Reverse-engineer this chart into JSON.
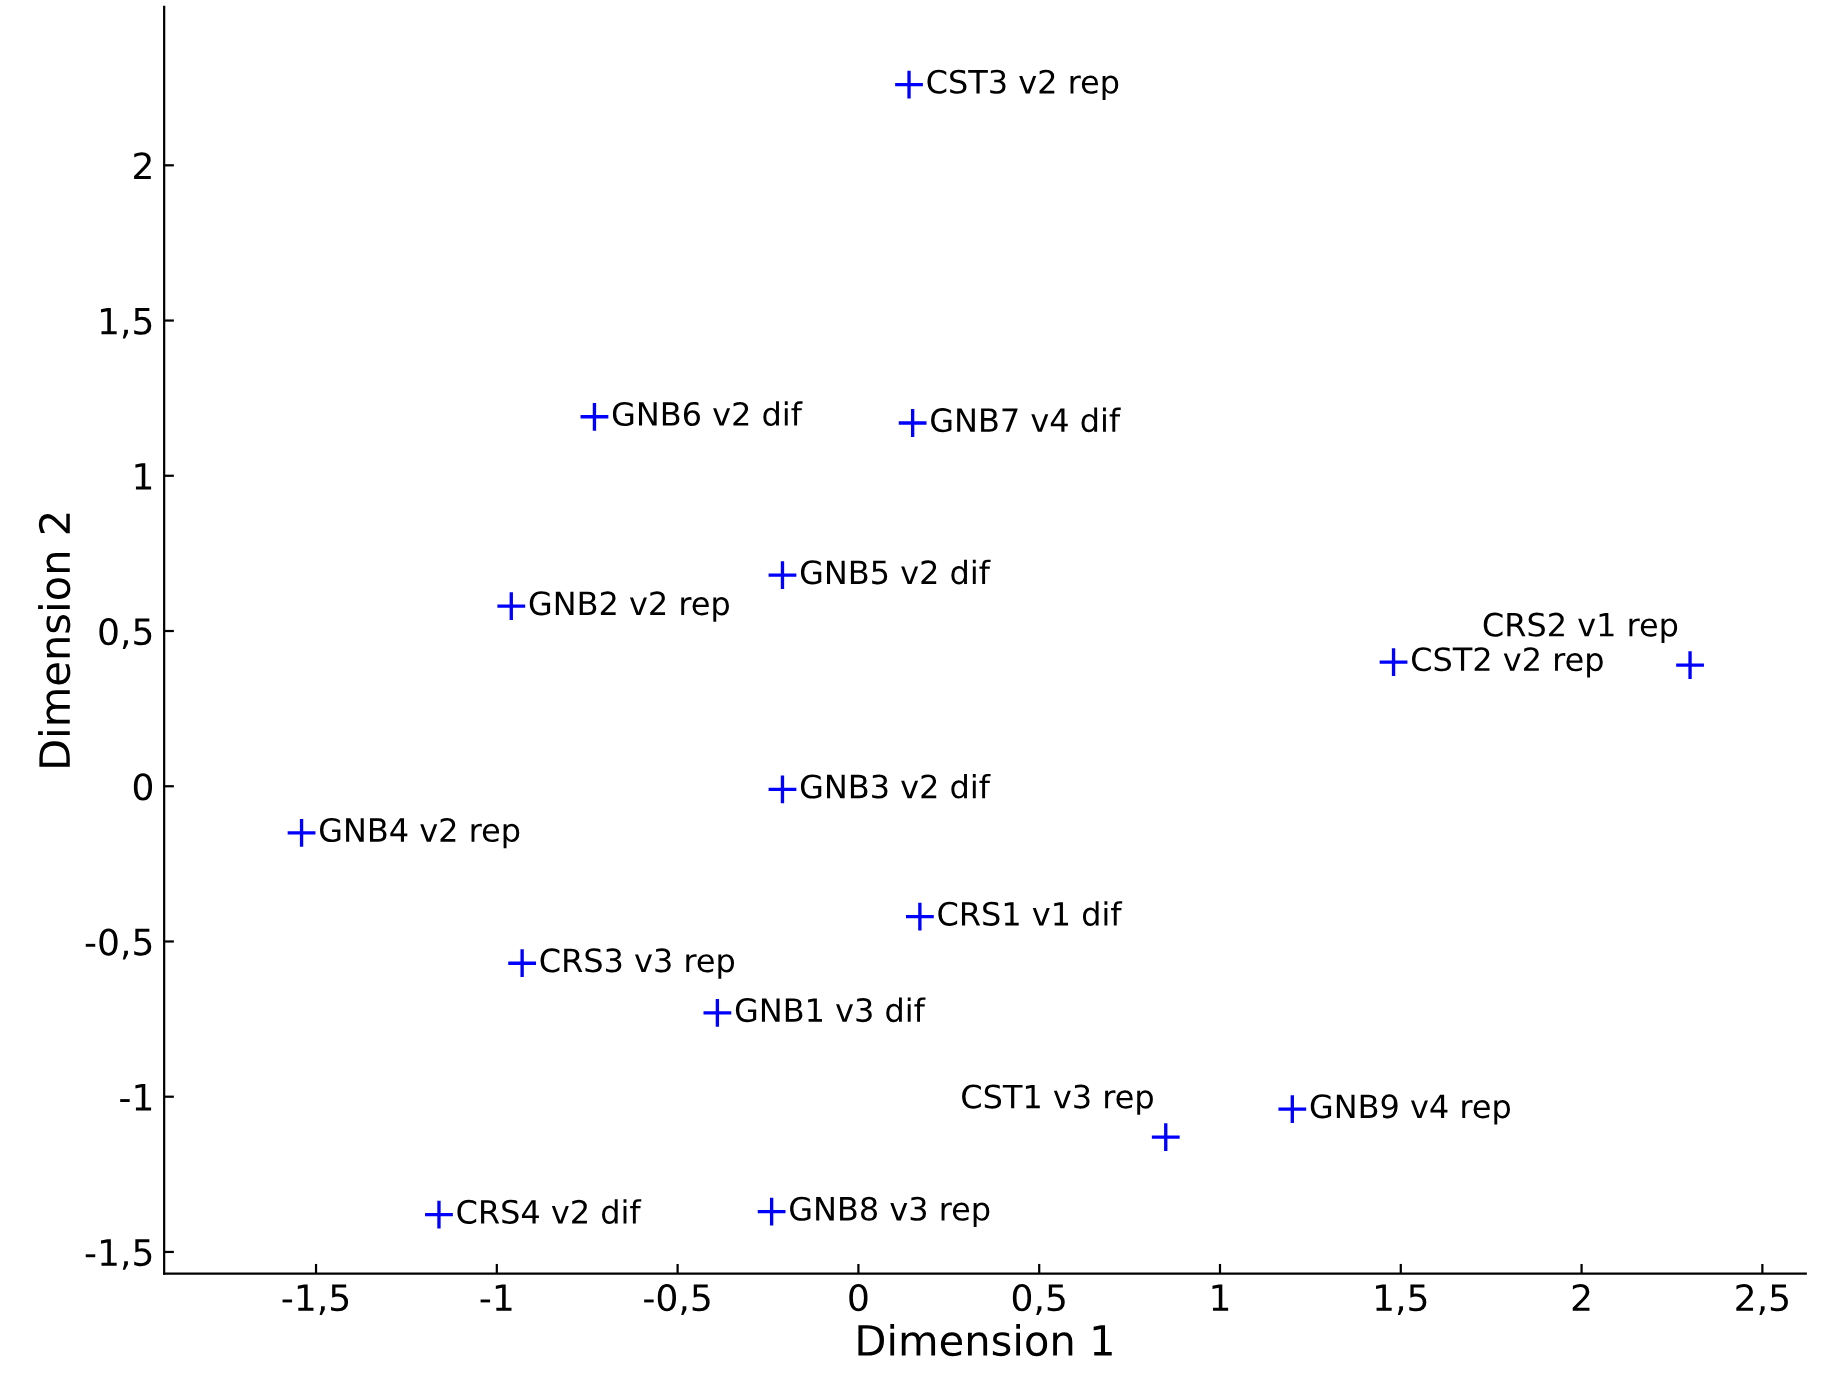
{
  "chart_data": {
    "type": "scatter",
    "xlabel": "Dimension 1",
    "ylabel": "Dimension 2",
    "marker": "cross",
    "grid": false,
    "xlim": [
      -1.92,
      2.62
    ],
    "ylim": [
      -1.57,
      2.51
    ],
    "xticks": [
      {
        "value": -1.5,
        "label": "-1,5"
      },
      {
        "value": -1,
        "label": "-1"
      },
      {
        "value": -0.5,
        "label": "-0,5"
      },
      {
        "value": 0,
        "label": "0"
      },
      {
        "value": 0.5,
        "label": "0,5"
      },
      {
        "value": 1,
        "label": "1"
      },
      {
        "value": 1.5,
        "label": "1,5"
      },
      {
        "value": 2,
        "label": "2"
      },
      {
        "value": 2.5,
        "label": "2,5"
      }
    ],
    "yticks": [
      {
        "value": -1.5,
        "label": "-1,5"
      },
      {
        "value": -1,
        "label": "-1"
      },
      {
        "value": -0.5,
        "label": "-0,5"
      },
      {
        "value": 0,
        "label": "0"
      },
      {
        "value": 0.5,
        "label": "0,5"
      },
      {
        "value": 1,
        "label": "1"
      },
      {
        "value": 1.5,
        "label": "1,5"
      },
      {
        "value": 2,
        "label": "2"
      }
    ],
    "series": [
      {
        "color": "#0000ff",
        "x": [
          0.14,
          -0.73,
          0.15,
          -0.21,
          -0.96,
          1.48,
          2.3,
          -0.21,
          -1.54,
          0.17,
          -0.93,
          -0.39,
          0.85,
          1.2,
          -1.16,
          -0.24
        ],
        "values": [
          2.26,
          1.19,
          1.17,
          0.68,
          0.58,
          0.4,
          0.39,
          -0.01,
          -0.15,
          -0.42,
          -0.57,
          -0.73,
          -1.13,
          -1.04,
          -1.38,
          -1.37
        ]
      }
    ],
    "annotations": [
      {
        "text": "CST3 v2 rep",
        "x": 0.14,
        "y": 2.26
      },
      {
        "text": "GNB6 v2 dif",
        "x": -0.73,
        "y": 1.19
      },
      {
        "text": "GNB7 v4 dif",
        "x": 0.15,
        "y": 1.17
      },
      {
        "text": "GNB5 v2 dif",
        "x": -0.21,
        "y": 0.68
      },
      {
        "text": "GNB2 v2 rep",
        "x": -0.96,
        "y": 0.58
      },
      {
        "text": "CST2 v2 rep",
        "x": 1.48,
        "y": 0.4
      },
      {
        "text": "CRS2 v1 rep",
        "x": 2.3,
        "y": 0.39
      },
      {
        "text": "GNB3 v2 dif",
        "x": -0.21,
        "y": -0.01
      },
      {
        "text": "GNB4 v2 rep",
        "x": -1.54,
        "y": -0.15
      },
      {
        "text": "CRS1 v1 dif",
        "x": 0.17,
        "y": -0.42
      },
      {
        "text": "CRS3 v3 rep",
        "x": -0.93,
        "y": -0.57
      },
      {
        "text": "GNB1 v3 dif",
        "x": -0.39,
        "y": -0.73
      },
      {
        "text": "CST1 v3 rep",
        "x": 0.85,
        "y": -1.13
      },
      {
        "text": "GNB9 v4 rep",
        "x": 1.2,
        "y": -1.04
      },
      {
        "text": "CRS4 v2 dif",
        "x": -1.16,
        "y": -1.38
      },
      {
        "text": "GNB8 v3 rep",
        "x": -0.24,
        "y": -1.37
      }
    ]
  }
}
